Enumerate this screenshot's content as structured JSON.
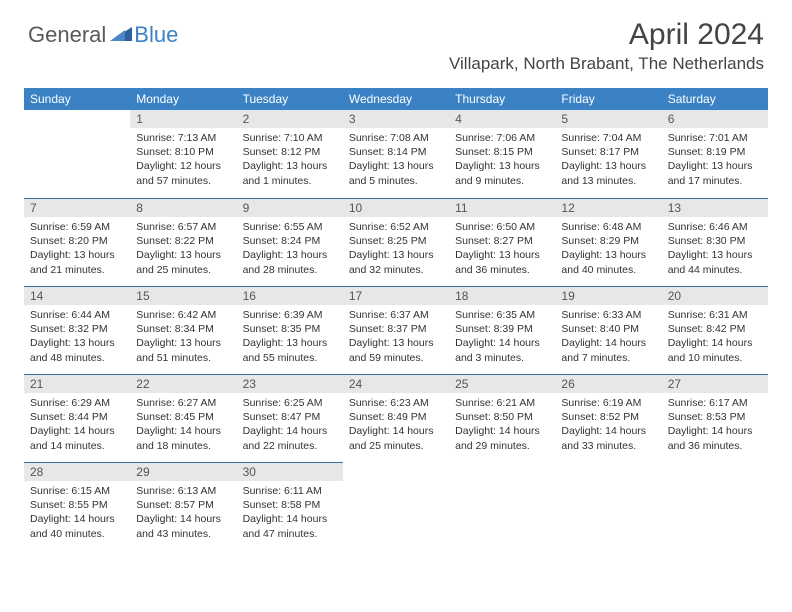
{
  "logo": {
    "text1": "General",
    "text2": "Blue"
  },
  "title": "April 2024",
  "location": "Villapark, North Brabant, The Netherlands",
  "colors": {
    "header_bg": "#3b82c4",
    "header_text": "#ffffff",
    "daynum_bg": "#e6e7e8",
    "border": "#3b6fa0",
    "body_text": "#333333",
    "logo_gray": "#5a5a5a",
    "logo_blue": "#3b82c4"
  },
  "typography": {
    "title_fontsize": 30,
    "location_fontsize": 17,
    "dayheader_fontsize": 12,
    "daynum_fontsize": 12,
    "body_fontsize": 10.5
  },
  "day_headers": [
    "Sunday",
    "Monday",
    "Tuesday",
    "Wednesday",
    "Thursday",
    "Friday",
    "Saturday"
  ],
  "weeks": [
    [
      {
        "n": "",
        "sr": "",
        "ss": "",
        "dl": ""
      },
      {
        "n": "1",
        "sr": "Sunrise: 7:13 AM",
        "ss": "Sunset: 8:10 PM",
        "dl": "Daylight: 12 hours and 57 minutes."
      },
      {
        "n": "2",
        "sr": "Sunrise: 7:10 AM",
        "ss": "Sunset: 8:12 PM",
        "dl": "Daylight: 13 hours and 1 minutes."
      },
      {
        "n": "3",
        "sr": "Sunrise: 7:08 AM",
        "ss": "Sunset: 8:14 PM",
        "dl": "Daylight: 13 hours and 5 minutes."
      },
      {
        "n": "4",
        "sr": "Sunrise: 7:06 AM",
        "ss": "Sunset: 8:15 PM",
        "dl": "Daylight: 13 hours and 9 minutes."
      },
      {
        "n": "5",
        "sr": "Sunrise: 7:04 AM",
        "ss": "Sunset: 8:17 PM",
        "dl": "Daylight: 13 hours and 13 minutes."
      },
      {
        "n": "6",
        "sr": "Sunrise: 7:01 AM",
        "ss": "Sunset: 8:19 PM",
        "dl": "Daylight: 13 hours and 17 minutes."
      }
    ],
    [
      {
        "n": "7",
        "sr": "Sunrise: 6:59 AM",
        "ss": "Sunset: 8:20 PM",
        "dl": "Daylight: 13 hours and 21 minutes."
      },
      {
        "n": "8",
        "sr": "Sunrise: 6:57 AM",
        "ss": "Sunset: 8:22 PM",
        "dl": "Daylight: 13 hours and 25 minutes."
      },
      {
        "n": "9",
        "sr": "Sunrise: 6:55 AM",
        "ss": "Sunset: 8:24 PM",
        "dl": "Daylight: 13 hours and 28 minutes."
      },
      {
        "n": "10",
        "sr": "Sunrise: 6:52 AM",
        "ss": "Sunset: 8:25 PM",
        "dl": "Daylight: 13 hours and 32 minutes."
      },
      {
        "n": "11",
        "sr": "Sunrise: 6:50 AM",
        "ss": "Sunset: 8:27 PM",
        "dl": "Daylight: 13 hours and 36 minutes."
      },
      {
        "n": "12",
        "sr": "Sunrise: 6:48 AM",
        "ss": "Sunset: 8:29 PM",
        "dl": "Daylight: 13 hours and 40 minutes."
      },
      {
        "n": "13",
        "sr": "Sunrise: 6:46 AM",
        "ss": "Sunset: 8:30 PM",
        "dl": "Daylight: 13 hours and 44 minutes."
      }
    ],
    [
      {
        "n": "14",
        "sr": "Sunrise: 6:44 AM",
        "ss": "Sunset: 8:32 PM",
        "dl": "Daylight: 13 hours and 48 minutes."
      },
      {
        "n": "15",
        "sr": "Sunrise: 6:42 AM",
        "ss": "Sunset: 8:34 PM",
        "dl": "Daylight: 13 hours and 51 minutes."
      },
      {
        "n": "16",
        "sr": "Sunrise: 6:39 AM",
        "ss": "Sunset: 8:35 PM",
        "dl": "Daylight: 13 hours and 55 minutes."
      },
      {
        "n": "17",
        "sr": "Sunrise: 6:37 AM",
        "ss": "Sunset: 8:37 PM",
        "dl": "Daylight: 13 hours and 59 minutes."
      },
      {
        "n": "18",
        "sr": "Sunrise: 6:35 AM",
        "ss": "Sunset: 8:39 PM",
        "dl": "Daylight: 14 hours and 3 minutes."
      },
      {
        "n": "19",
        "sr": "Sunrise: 6:33 AM",
        "ss": "Sunset: 8:40 PM",
        "dl": "Daylight: 14 hours and 7 minutes."
      },
      {
        "n": "20",
        "sr": "Sunrise: 6:31 AM",
        "ss": "Sunset: 8:42 PM",
        "dl": "Daylight: 14 hours and 10 minutes."
      }
    ],
    [
      {
        "n": "21",
        "sr": "Sunrise: 6:29 AM",
        "ss": "Sunset: 8:44 PM",
        "dl": "Daylight: 14 hours and 14 minutes."
      },
      {
        "n": "22",
        "sr": "Sunrise: 6:27 AM",
        "ss": "Sunset: 8:45 PM",
        "dl": "Daylight: 14 hours and 18 minutes."
      },
      {
        "n": "23",
        "sr": "Sunrise: 6:25 AM",
        "ss": "Sunset: 8:47 PM",
        "dl": "Daylight: 14 hours and 22 minutes."
      },
      {
        "n": "24",
        "sr": "Sunrise: 6:23 AM",
        "ss": "Sunset: 8:49 PM",
        "dl": "Daylight: 14 hours and 25 minutes."
      },
      {
        "n": "25",
        "sr": "Sunrise: 6:21 AM",
        "ss": "Sunset: 8:50 PM",
        "dl": "Daylight: 14 hours and 29 minutes."
      },
      {
        "n": "26",
        "sr": "Sunrise: 6:19 AM",
        "ss": "Sunset: 8:52 PM",
        "dl": "Daylight: 14 hours and 33 minutes."
      },
      {
        "n": "27",
        "sr": "Sunrise: 6:17 AM",
        "ss": "Sunset: 8:53 PM",
        "dl": "Daylight: 14 hours and 36 minutes."
      }
    ],
    [
      {
        "n": "28",
        "sr": "Sunrise: 6:15 AM",
        "ss": "Sunset: 8:55 PM",
        "dl": "Daylight: 14 hours and 40 minutes."
      },
      {
        "n": "29",
        "sr": "Sunrise: 6:13 AM",
        "ss": "Sunset: 8:57 PM",
        "dl": "Daylight: 14 hours and 43 minutes."
      },
      {
        "n": "30",
        "sr": "Sunrise: 6:11 AM",
        "ss": "Sunset: 8:58 PM",
        "dl": "Daylight: 14 hours and 47 minutes."
      },
      {
        "n": "",
        "sr": "",
        "ss": "",
        "dl": ""
      },
      {
        "n": "",
        "sr": "",
        "ss": "",
        "dl": ""
      },
      {
        "n": "",
        "sr": "",
        "ss": "",
        "dl": ""
      },
      {
        "n": "",
        "sr": "",
        "ss": "",
        "dl": ""
      }
    ]
  ]
}
